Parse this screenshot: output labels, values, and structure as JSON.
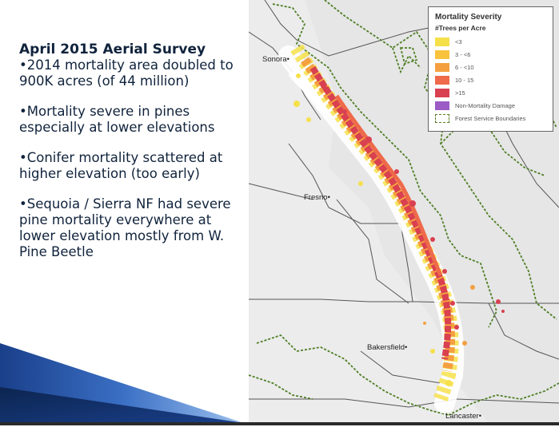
{
  "slide": {
    "title": "April 2015 Aerial Survey",
    "bullets": [
      "•2014 mortality area doubled to 900K acres (of 44 million)",
      "•Mortality severe in pines especially at lower elevations",
      "•Conifer mortality scattered at higher elevation (too early)",
      "•Sequoia / Sierra NF had severe pine mortality everywhere at lower elevation mostly from W. Pine Beetle"
    ]
  },
  "map": {
    "cities": [
      "Sonora•",
      "Fresno•",
      "Bakersfield•",
      "Lancaster•"
    ],
    "legend": {
      "title": "Mortality Severity",
      "subtitle": "#Trees per Acre",
      "items": [
        {
          "label": "<3",
          "color": "#f6e04a"
        },
        {
          "label": "3 - <6",
          "color": "#f9c23c"
        },
        {
          "label": "6 - <10",
          "color": "#f4a040"
        },
        {
          "label": "10 - 15",
          "color": "#ee6a4a"
        },
        {
          "label": ">15",
          "color": "#d94050"
        },
        {
          "label": "Non-Mortality Damage",
          "color": "#9b5cc6"
        },
        {
          "label": "Forest Service Boundaries",
          "color": "#5a7a1e"
        }
      ]
    },
    "colors": {
      "boundary": "#4f7f25",
      "county": "#555555",
      "background": "#e6e6e6"
    }
  }
}
